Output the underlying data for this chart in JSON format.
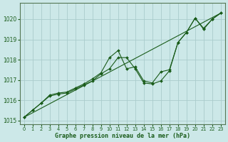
{
  "title": "Graphe pression niveau de la mer (hPa)",
  "bg_color": "#cce8e8",
  "grid_color": "#aacccc",
  "line_color": "#1a5c1a",
  "xlim": [
    -0.5,
    23.5
  ],
  "ylim": [
    1014.8,
    1020.8
  ],
  "xticks": [
    0,
    1,
    2,
    3,
    4,
    5,
    6,
    7,
    8,
    9,
    10,
    11,
    12,
    13,
    14,
    15,
    16,
    17,
    18,
    19,
    20,
    21,
    22,
    23
  ],
  "yticks": [
    1015,
    1016,
    1017,
    1018,
    1019,
    1020
  ],
  "series1_x": [
    0,
    1,
    2,
    3,
    4,
    5,
    6,
    7,
    8,
    9,
    10,
    11,
    12,
    13,
    14,
    15,
    16,
    17,
    18,
    19,
    20,
    21,
    22,
    23
  ],
  "series1_y": [
    1015.15,
    1015.5,
    1015.85,
    1016.2,
    1016.3,
    1016.35,
    1016.55,
    1016.75,
    1016.95,
    1017.3,
    1017.55,
    1018.1,
    1018.1,
    1017.55,
    1016.85,
    1016.8,
    1016.95,
    1017.45,
    1018.85,
    1019.35,
    1020.05,
    1019.5,
    1020.0,
    1020.3
  ],
  "series2_x": [
    0,
    1,
    2,
    3,
    4,
    5,
    6,
    7,
    8,
    9,
    10,
    11,
    12,
    13,
    14,
    15,
    16,
    17,
    18,
    19,
    20,
    21,
    22,
    23
  ],
  "series2_y": [
    1015.15,
    1015.5,
    1015.85,
    1016.25,
    1016.35,
    1016.4,
    1016.6,
    1016.8,
    1017.05,
    1017.35,
    1018.1,
    1018.45,
    1017.55,
    1017.65,
    1016.95,
    1016.85,
    1017.4,
    1017.5,
    1018.85,
    1019.35,
    1020.05,
    1019.55,
    1020.0,
    1020.3
  ],
  "trend_x": [
    0,
    23
  ],
  "trend_y": [
    1015.15,
    1020.3
  ]
}
